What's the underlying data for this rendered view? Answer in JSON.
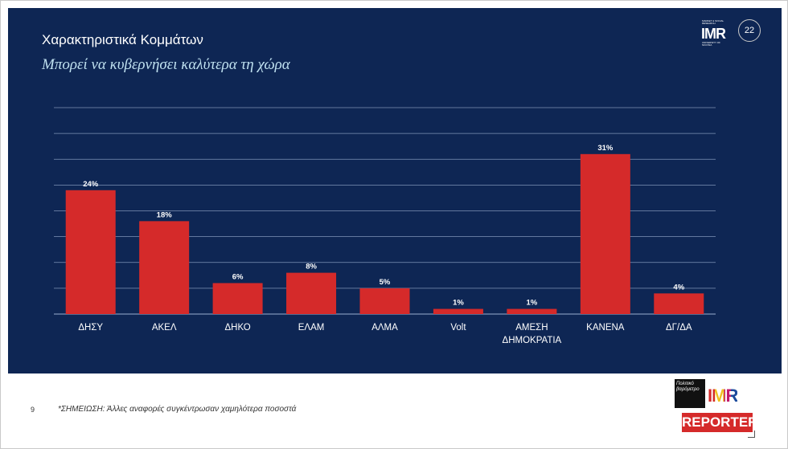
{
  "slide": {
    "title": "Χαρακτηριστικά Κομμάτων",
    "subtitle": "Μπορεί να κυβερνήσει καλύτερα τη χώρα",
    "page_number": "9",
    "footnote": "*ΣΗΜΕΙΩΣΗ: Άλλες αναφορές συγκέντρωσαν χαμηλότερα ποσοστά"
  },
  "logos": {
    "top_brand": "IMR",
    "top_badge": "22",
    "top_small_line1": "MARKET & SOCIAL RESEARCH",
    "top_small_line2": "UNIVERSITY OF NICOSIA",
    "bottom_box": "Πολιτικό βαρόμετρο",
    "bottom_brand": "IMR",
    "bottom_reporter": "REPORTER"
  },
  "colors": {
    "background": "#0e2654",
    "bar": "#d52a2a",
    "gridline": "#7f93b6"
  },
  "chart_data": {
    "type": "bar",
    "title": "Χαρακτηριστικά Κομμάτων",
    "subtitle": "Μπορεί να κυβερνήσει καλύτερα τη χώρα",
    "categories": [
      "ΔΗΣΥ",
      "ΑΚΕΛ",
      "ΔΗΚΟ",
      "ΕΛΑΜ",
      "ΑΛΜΑ",
      "Volt",
      "ΑΜΕΣΗ ΔΗΜΟΚΡΑΤΙΑ",
      "ΚΑΝΕΝΑ",
      "ΔΓ/ΔΑ"
    ],
    "values": [
      24,
      18,
      6,
      8,
      5,
      1,
      1,
      31,
      4
    ],
    "labels": [
      "24%",
      "18%",
      "6%",
      "8%",
      "5%",
      "1%",
      "1%",
      "31%",
      "4%"
    ],
    "unit": "%",
    "ylim": [
      0,
      40
    ],
    "grid": true,
    "xlabel": "",
    "ylabel": ""
  }
}
